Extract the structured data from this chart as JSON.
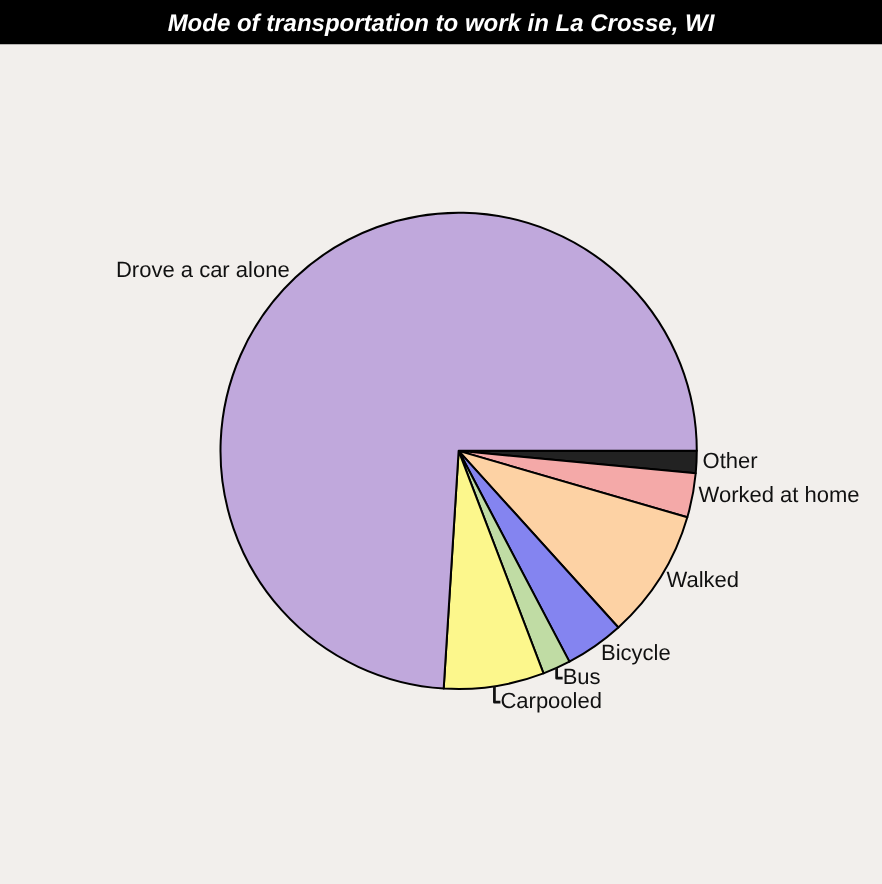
{
  "chart_data": {
    "type": "pie",
    "title": "Mode of transportation to work in La Crosse, WI",
    "categories": [
      "Other",
      "Worked at home",
      "Walked",
      "Bicycle",
      "Bus",
      "Carpooled",
      "Drove a car alone"
    ],
    "values": [
      1.5,
      3.0,
      8.8,
      4.0,
      1.9,
      6.8,
      74.0
    ],
    "colors": [
      "#222222",
      "#f4a9a8",
      "#fdd2a4",
      "#8484f0",
      "#c0dca4",
      "#fcf78c",
      "#c0a8dc"
    ]
  }
}
